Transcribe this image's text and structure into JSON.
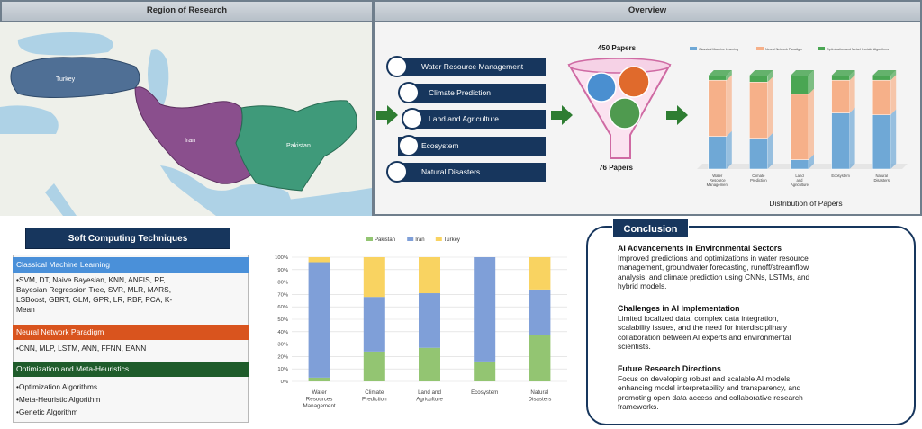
{
  "region_panel": {
    "title": "Region of Research",
    "regions": [
      {
        "label": "Turkey",
        "color": "#4f6f95"
      },
      {
        "label": "Iran",
        "color": "#8a4f8d"
      },
      {
        "label": "Pakistan",
        "color": "#3f9a7a"
      }
    ]
  },
  "overview_panel": {
    "title": "Overview",
    "topics": [
      "Water Resource Management",
      "Climate Prediction",
      "Land and Agriculture",
      "Ecosystem",
      "Natural Disasters"
    ],
    "papers_in": "450 Papers",
    "papers_out": "76 Papers",
    "funnel_circles": [
      {
        "color": "#4a8fd0"
      },
      {
        "color": "#e06a2c"
      },
      {
        "color": "#4f9a4f"
      }
    ],
    "accent_colors": {
      "navy": "#17365d",
      "arrow_green": "#2e7d32",
      "funnel_pink": "#cf6aa3"
    }
  },
  "distribution_chart": {
    "caption": "Distribution of Papers",
    "chart_data": {
      "type": "bar",
      "stacked": true,
      "title": "",
      "categories": [
        "Water Resource Management",
        "Climate Prediction",
        "Land and Agriculture",
        "Ecosystem",
        "Natural Disasters"
      ],
      "series": [
        {
          "name": "Classical Machine Learning",
          "color": "#6fa8d6",
          "values": [
            35,
            33,
            10,
            60,
            58
          ]
        },
        {
          "name": "Neural Network Paradigm",
          "color": "#f6b089",
          "values": [
            60,
            60,
            70,
            35,
            37
          ]
        },
        {
          "name": "Optimization and Meta-Heuristic Algorithms",
          "color": "#4aa653",
          "values": [
            5,
            7,
            20,
            5,
            5
          ]
        }
      ],
      "ylim": [
        0,
        100
      ]
    }
  },
  "soft_computing": {
    "title": "Soft Computing Techniques",
    "categories": [
      {
        "label": "Classical Machine Learning",
        "color": "#4a90d9",
        "items": [
          "SVM, DT, Naive Bayesian, KNN, ANFIS, RF,",
          "Bayesian Regression Tree, SVR, MLR, MARS,",
          "LSBoost, GBRT, GLM, GPR, LR, RBF, PCA, K-",
          "Mean"
        ]
      },
      {
        "label": "Neural Network Paradigm",
        "color": "#d9541e",
        "items": [
          "CNN, MLP, LSTM, ANN, FFNN, EANN"
        ]
      },
      {
        "label": "Optimization and Meta-Heuristics",
        "color": "#1f5c2b",
        "items": [
          "Optimization Algorithms",
          "Meta-Heuristic Algorithm",
          "Genetic Algorithm"
        ]
      }
    ]
  },
  "country_chart": {
    "chart_data": {
      "type": "bar",
      "stacked": true,
      "title": "",
      "categories": [
        "Water Resources Management",
        "Climate Prediction",
        "Land and Agriculture",
        "Ecosystem",
        "Natural Disasters"
      ],
      "category_lines": [
        [
          "Water",
          "Resources",
          "Management"
        ],
        [
          "Climate",
          "Prediction"
        ],
        [
          "Land and",
          "Agriculture"
        ],
        [
          "Ecosystem"
        ],
        [
          "Natural",
          "Disasters"
        ]
      ],
      "series": [
        {
          "name": "Pakistan",
          "color": "#93c572",
          "values": [
            3,
            24,
            27,
            16,
            37
          ]
        },
        {
          "name": "Iran",
          "color": "#7f9fd8",
          "values": [
            93,
            44,
            44,
            84,
            37
          ]
        },
        {
          "name": "Turkey",
          "color": "#f9d361",
          "values": [
            4,
            32,
            29,
            0,
            26
          ]
        }
      ],
      "yticks": [
        "0%",
        "10%",
        "20%",
        "30%",
        "40%",
        "50%",
        "60%",
        "70%",
        "80%",
        "90%",
        "100%"
      ],
      "ylim": [
        0,
        100
      ],
      "legend": "top-center"
    }
  },
  "conclusion": {
    "title": "Conclusion",
    "sections": [
      {
        "heading": "AI Advancements in Environmental Sectors",
        "lines": [
          "Improved predictions and optimizations in water resource",
          "management, groundwater forecasting, runoff/streamflow",
          "analysis, and climate prediction using CNNs, LSTMs, and",
          "hybrid models."
        ]
      },
      {
        "heading": "Challenges in AI Implementation",
        "lines": [
          "Limited localized data, complex data integration,",
          "scalability issues, and the need for interdisciplinary",
          "collaboration between AI experts and environmental",
          "scientists."
        ]
      },
      {
        "heading": "Future Research Directions",
        "lines": [
          "Focus on developing robust and scalable AI models,",
          "enhancing model interpretability and transparency, and",
          "promoting open data access and collaborative research",
          "frameworks."
        ]
      }
    ]
  }
}
